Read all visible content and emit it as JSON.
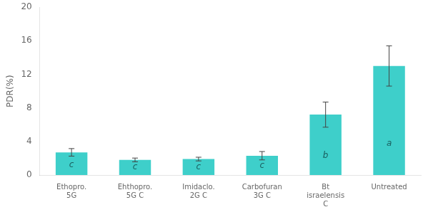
{
  "chart_data": {
    "type": "bar",
    "categories": [
      "Ethopro.\n5G",
      "Ehthopro.\n5G C",
      "Imidaclo.\n2G C",
      "Carbofuran\n3G C",
      "Bt\nisraelensis\nC",
      "Untreated"
    ],
    "values": [
      2.7,
      1.8,
      1.9,
      2.3,
      7.2,
      13.0
    ],
    "errors": [
      0.45,
      0.22,
      0.22,
      0.5,
      1.5,
      2.4
    ],
    "annotations": [
      "c",
      "c",
      "c",
      "c",
      "b",
      "a"
    ],
    "color": "#3ECFCA",
    "ylabel": "PDR(%)",
    "ylim": [
      0,
      20
    ],
    "yticks": [
      0,
      4,
      8,
      12,
      16,
      20
    ],
    "grid": false
  }
}
